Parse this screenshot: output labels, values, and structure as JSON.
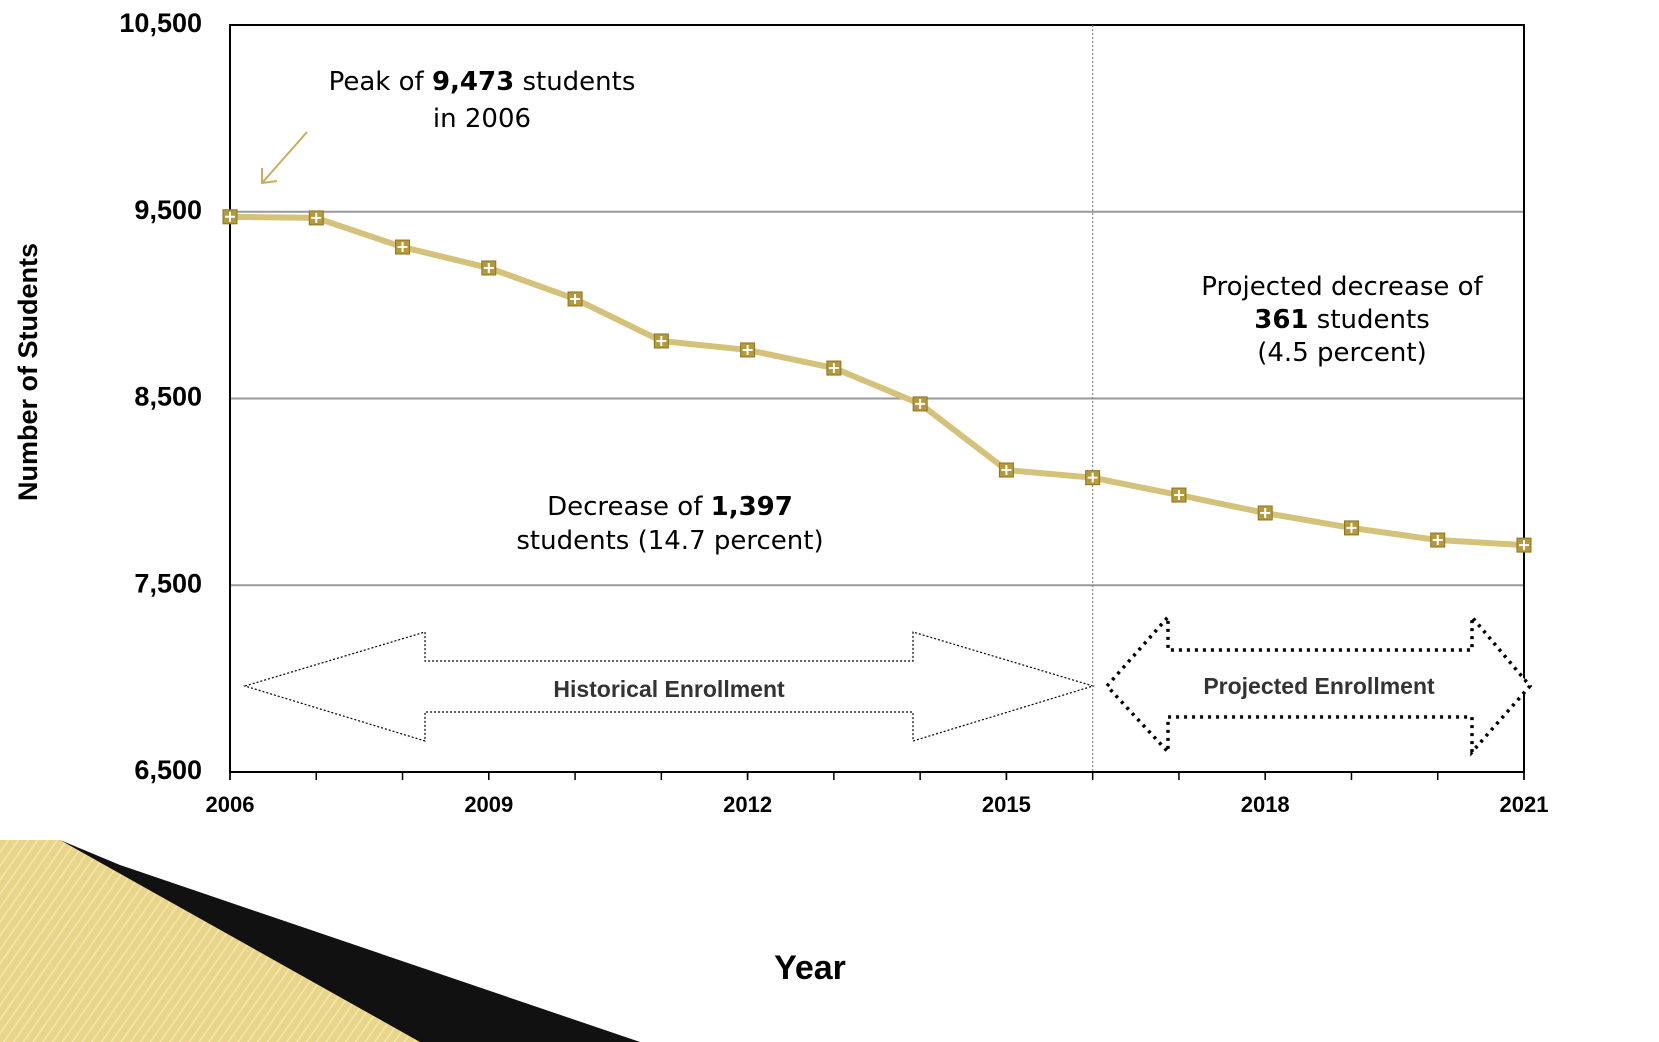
{
  "chart_data": {
    "type": "line",
    "x_label": "Year",
    "y_label": "Number of Students",
    "x": [
      2006,
      2007,
      2008,
      2009,
      2010,
      2011,
      2012,
      2013,
      2014,
      2015,
      2016,
      2017,
      2018,
      2019,
      2020,
      2021
    ],
    "series": [
      {
        "color": "#d4c27a",
        "marker_color": "#b49a3a",
        "values": [
          9473,
          9467,
          9311,
          9199,
          9033,
          8808,
          8760,
          8663,
          8471,
          8117,
          8076,
          7983,
          7887,
          7807,
          7742,
          7715
        ]
      }
    ],
    "xlim": [
      2006,
      2021
    ],
    "xticks": [
      2006,
      2009,
      2012,
      2015,
      2018,
      2021
    ],
    "ylim": [
      6500,
      10500
    ],
    "yticks": [
      {
        "value": 6500,
        "label": "6,500"
      },
      {
        "value": 7500,
        "label": "7,500"
      },
      {
        "value": 8500,
        "label": "8,500"
      },
      {
        "value": 9500,
        "label": "9,500"
      },
      {
        "value": 10500,
        "label": "10,500"
      }
    ],
    "grid": true,
    "divider_x": 2016,
    "annotations": [
      {
        "lines": [
          [
            "Peak of ",
            "9,473",
            " students"
          ],
          [
            "in 2006"
          ]
        ]
      },
      {
        "lines": [
          [
            "Decrease of ",
            "1,397"
          ],
          [
            "students (14.7 percent)"
          ]
        ]
      },
      {
        "lines": [
          [
            "Projected decrease of"
          ],
          [
            "361",
            " students"
          ],
          [
            "(4.5 percent)"
          ]
        ]
      }
    ],
    "period_labels": [
      "Historical Enrollment",
      "Projected Enrollment"
    ]
  }
}
